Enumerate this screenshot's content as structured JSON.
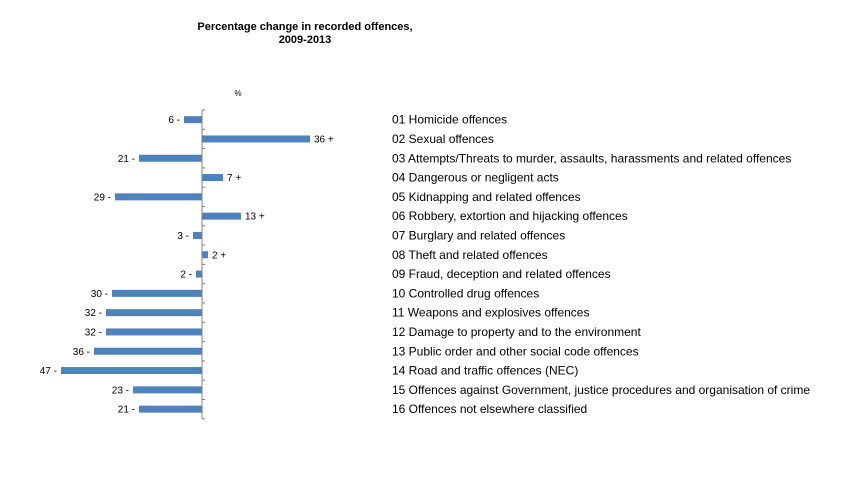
{
  "chart_data": {
    "type": "bar",
    "orientation": "horizontal",
    "title": "Percentage change in recorded offences,",
    "subtitle": "2009-2013",
    "unit_label": "%",
    "bar_color": "#4f81bd",
    "legend": "none",
    "grid": false,
    "xlim": [
      -50,
      40
    ],
    "categories": [
      "01 Homicide offences",
      "02 Sexual offences",
      "03 Attempts/Threats to murder, assaults, harassments and related offences",
      "04 Dangerous or negligent acts",
      "05 Kidnapping and related offences",
      "06 Robbery, extortion and hijacking offences",
      "07 Burglary and related offences",
      "08 Theft and related offences",
      "09 Fraud, deception and related offences",
      "10 Controlled drug offences",
      "11 Weapons and explosives offences",
      "12 Damage to property and to the environment",
      "13 Public order and other social code offences",
      "14 Road and traffic offences (NEC)",
      "15 Offences against Government, justice procedures and organisation of crime",
      "16 Offences not elsewhere classified"
    ],
    "values": [
      -6,
      36,
      -21,
      7,
      -29,
      13,
      -3,
      2,
      -2,
      -30,
      -32,
      -32,
      -36,
      -47,
      -23,
      -21
    ],
    "data_labels": [
      "6 -",
      "36 +",
      "21 -",
      "7  +",
      "29 -",
      "13 +",
      "3 -",
      "2  +",
      "2  -",
      "30 -",
      "32 -",
      "32 -",
      "36 -",
      "47 -",
      "23 -",
      "21 -"
    ]
  }
}
